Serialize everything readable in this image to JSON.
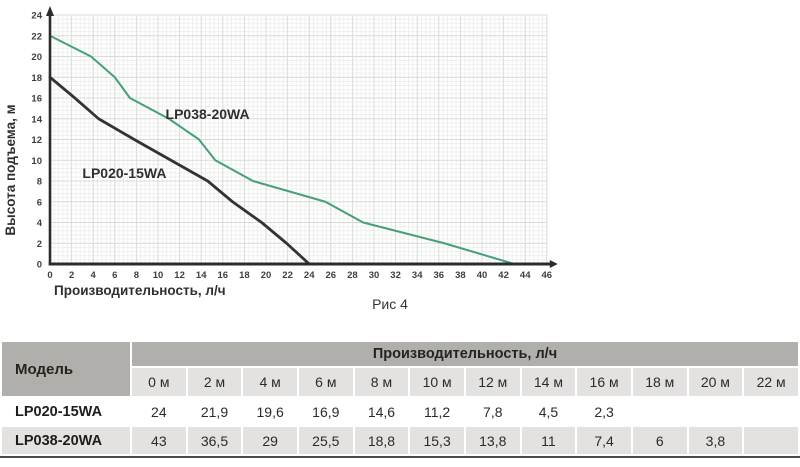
{
  "figure_caption": "Рис 4",
  "colors": {
    "curve_green": "#45a077",
    "curve_dark": "#333333",
    "axis": "#2b2b2b",
    "grid_major": "#d8dbd8",
    "grid_minor": "#eef0ee",
    "tick_text": "#3f3f3f",
    "table_header_bg": "#b1afac",
    "table_subheader_bg": "#e3e2e0",
    "table_bottom_border": "#4c4b49"
  },
  "chart_data": {
    "type": "line",
    "title": "",
    "xlabel": "Производительность, л/ч",
    "ylabel": "Высота подъема, м",
    "xlim": [
      0,
      46
    ],
    "ylim": [
      0,
      24
    ],
    "x_ticks": [
      0,
      2,
      4,
      6,
      8,
      10,
      12,
      14,
      16,
      18,
      20,
      22,
      24,
      26,
      28,
      30,
      32,
      34,
      36,
      38,
      40,
      42,
      44,
      46
    ],
    "y_ticks": [
      0,
      2,
      4,
      6,
      8,
      10,
      12,
      14,
      16,
      18,
      20,
      22,
      24
    ],
    "grid": "major-and-minor",
    "legend_position": "inline-labels",
    "series": [
      {
        "name": "LP020-15WA",
        "color": "#333333",
        "width": 2.8,
        "label_x": 3.0,
        "label_y": 8.3,
        "points": [
          [
            0,
            18
          ],
          [
            2.3,
            16
          ],
          [
            4.5,
            14
          ],
          [
            7.8,
            12
          ],
          [
            11.2,
            10
          ],
          [
            14.6,
            8
          ],
          [
            16.9,
            6
          ],
          [
            19.6,
            4
          ],
          [
            21.9,
            2
          ],
          [
            24,
            0
          ]
        ]
      },
      {
        "name": "LP038-20WA",
        "color": "#45a077",
        "width": 2,
        "label_x": 10.7,
        "label_y": 14.0,
        "points": [
          [
            0,
            22
          ],
          [
            3.8,
            20
          ],
          [
            6,
            18
          ],
          [
            7.4,
            16
          ],
          [
            11,
            14
          ],
          [
            13.8,
            12
          ],
          [
            15.3,
            10
          ],
          [
            18.8,
            8
          ],
          [
            25.5,
            6
          ],
          [
            29,
            4
          ],
          [
            36.5,
            2
          ],
          [
            43,
            0
          ]
        ]
      }
    ]
  },
  "table": {
    "model_header": "Модель",
    "group_header": "Производительность, л/ч",
    "columns": [
      "0 м",
      "2 м",
      "4 м",
      "6 м",
      "8 м",
      "10 м",
      "12 м",
      "14 м",
      "16 м",
      "18 м",
      "20 м",
      "22 м"
    ],
    "rows": [
      {
        "model": "LP020-15WA",
        "values": [
          "24",
          "21,9",
          "19,6",
          "16,9",
          "14,6",
          "11,2",
          "7,8",
          "4,5",
          "2,3",
          "",
          "",
          ""
        ]
      },
      {
        "model": "LP038-20WA",
        "values": [
          "43",
          "36,5",
          "29",
          "25,5",
          "18,8",
          "15,3",
          "13,8",
          "11",
          "7,4",
          "6",
          "3,8",
          ""
        ]
      }
    ]
  }
}
